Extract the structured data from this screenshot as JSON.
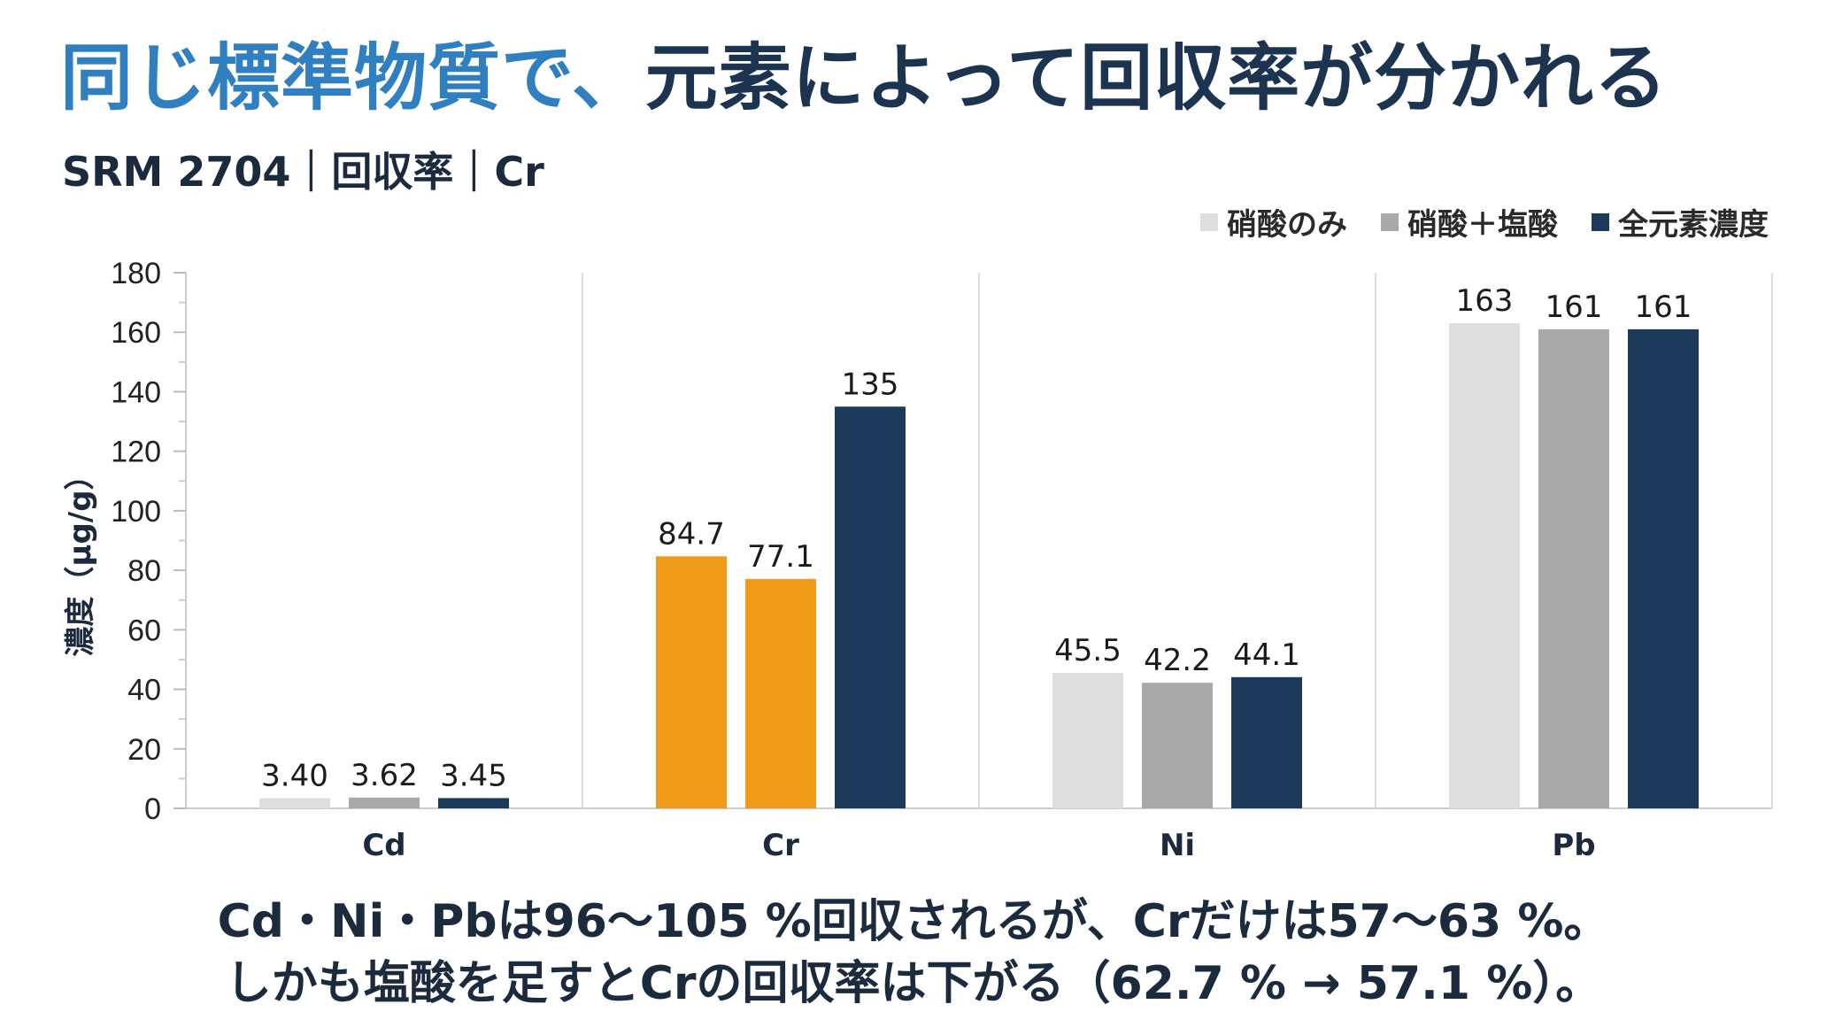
{
  "title": {
    "highlight": "同じ標準物質で、",
    "rest": "元素によって回収率が分かれる"
  },
  "subtitle": "SRM 2704｜回収率｜Cr",
  "colors": {
    "light": "#dedede",
    "mid": "#a9a9a9",
    "navy": "#1b3a5c",
    "highlight": "#f09a1a"
  },
  "legend": [
    {
      "label": "硝酸のみ",
      "color": "#dedede"
    },
    {
      "label": "硝酸＋塩酸",
      "color": "#a9a9a9"
    },
    {
      "label": "全元素濃度",
      "color": "#1b3a5c"
    }
  ],
  "chart_data": {
    "type": "bar",
    "categories": [
      "Cd",
      "Cr",
      "Ni",
      "Pb"
    ],
    "series": [
      {
        "name": "硝酸のみ",
        "values": [
          3.4,
          84.7,
          45.5,
          163
        ],
        "labels": [
          "3.40",
          "84.7",
          "45.5",
          "163"
        ]
      },
      {
        "name": "硝酸＋塩酸",
        "values": [
          3.62,
          77.1,
          42.2,
          161
        ],
        "labels": [
          "3.62",
          "77.1",
          "42.2",
          "161"
        ]
      },
      {
        "name": "全元素濃度",
        "values": [
          3.45,
          135,
          44.1,
          161
        ],
        "labels": [
          "3.45",
          "135",
          "44.1",
          "161"
        ]
      }
    ],
    "highlighted_category": "Cr",
    "highlighted_series": [
      "硝酸のみ",
      "硝酸＋塩酸"
    ],
    "ylabel": "濃度（µg/g）",
    "ylim": [
      0,
      180
    ],
    "yticks": [
      0,
      20,
      40,
      60,
      80,
      100,
      120,
      140,
      160,
      180
    ],
    "grid": false,
    "legend_position": "top-right"
  },
  "caption": {
    "line1": "Cd・Ni・Pbは96～105 %回収されるが、Crだけは57～63 %。",
    "line2": "しかも塩酸を足すとCrの回収率は下がる（62.7 % → 57.1 %）。"
  }
}
